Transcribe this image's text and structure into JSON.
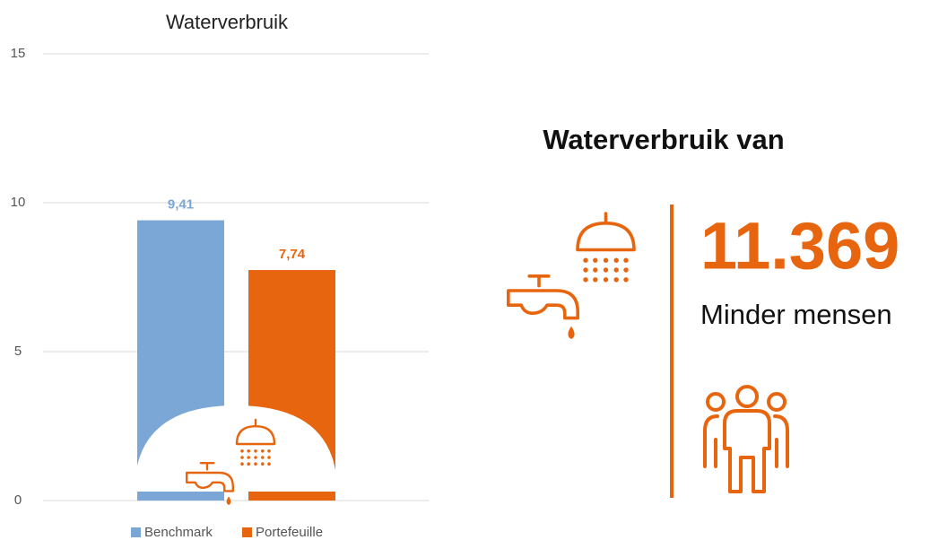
{
  "chart_data": {
    "type": "bar",
    "title": "Waterverbruik",
    "categories": [
      null
    ],
    "series": [
      {
        "name": "Benchmark",
        "color": "#7ba7d6",
        "values": [
          9.41
        ],
        "value_labels": [
          "9,41"
        ]
      },
      {
        "name": "Portefeuille",
        "color": "#e8650f",
        "values": [
          7.74
        ],
        "value_labels": [
          "7,74"
        ]
      }
    ],
    "ylim": [
      0,
      15
    ],
    "yticks": [
      0,
      5,
      10,
      15
    ],
    "grid": true
  },
  "infographic": {
    "title": "Waterverbruik van",
    "value": "11.369",
    "label": "Minder mensen"
  }
}
